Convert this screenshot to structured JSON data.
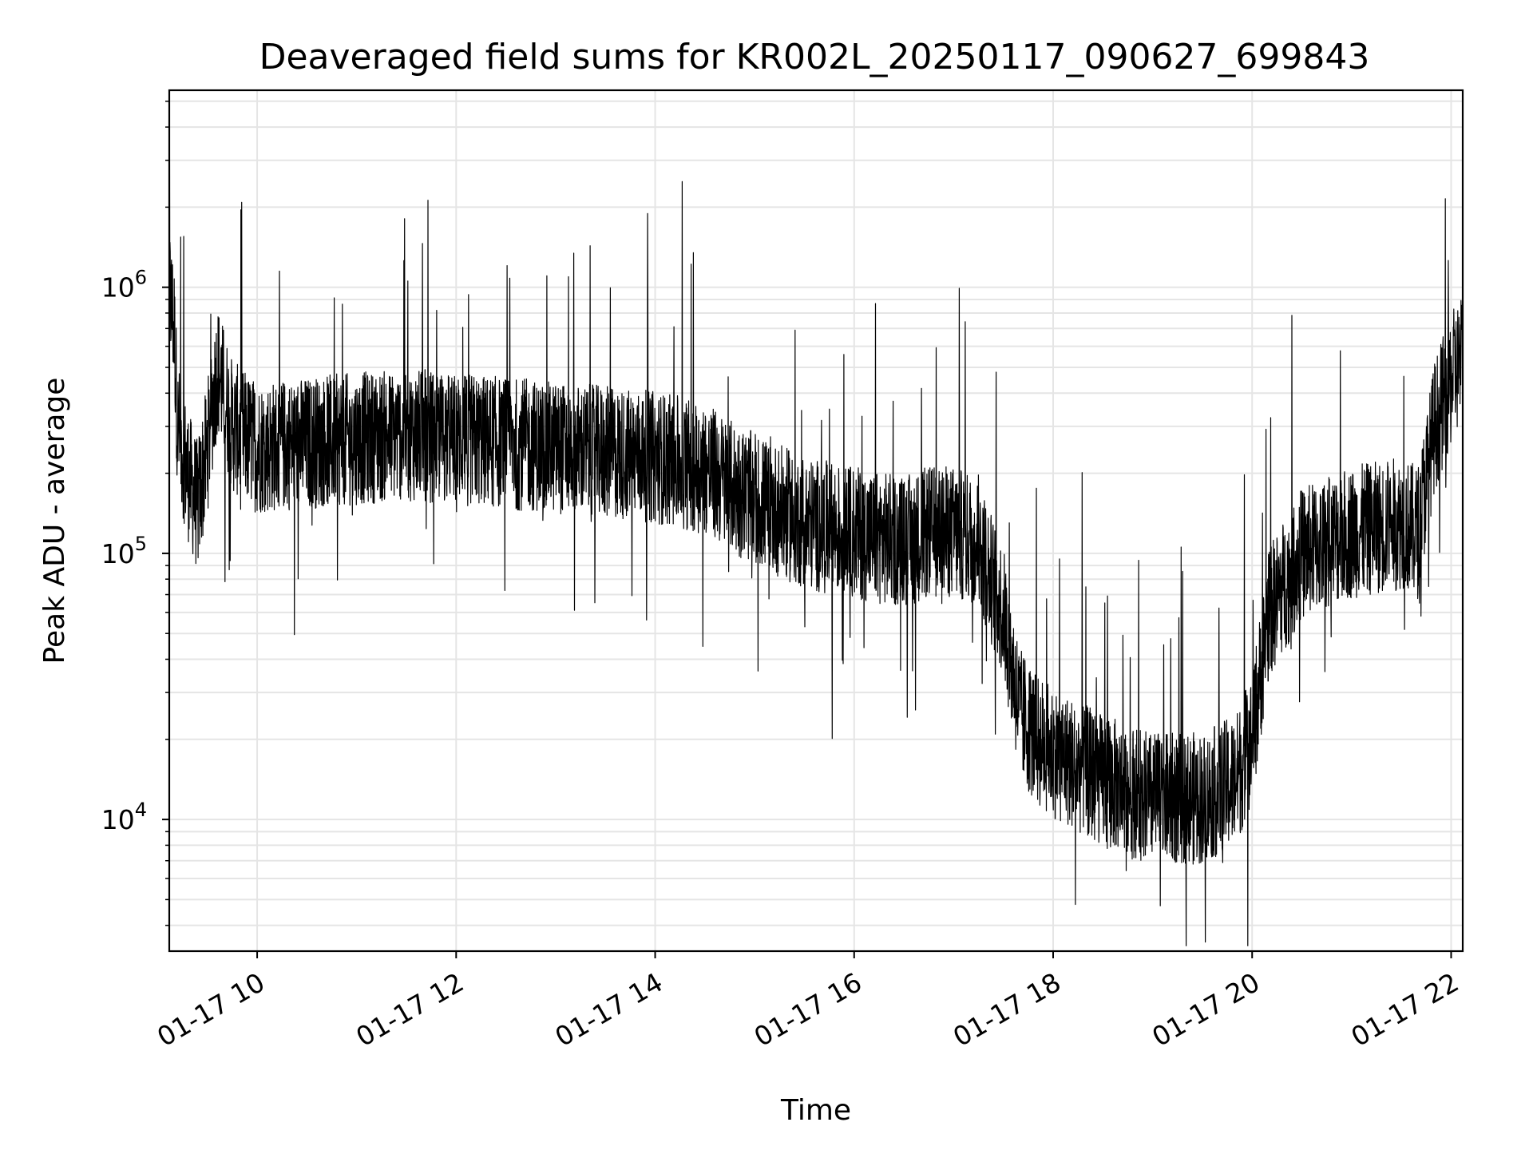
{
  "chart_data": {
    "type": "line",
    "title": "Deaveraged field sums for KR002L_20250117_090627_699843",
    "xlabel": "Time",
    "ylabel": "Peak ADU - average",
    "y_scale": "log",
    "ylim": [
      3200,
      5500000
    ],
    "xlim": [
      "01-17 09:07",
      "01-17 22:07"
    ],
    "x_tick_labels": [
      "01-17 10",
      "01-17 12",
      "01-17 14",
      "01-17 16",
      "01-17 18",
      "01-17 20",
      "01-17 22"
    ],
    "x_ticks": [
      "01-17 10:00",
      "01-17 12:00",
      "01-17 14:00",
      "01-17 16:00",
      "01-17 18:00",
      "01-17 20:00",
      "01-17 22:00"
    ],
    "y_tick_labels": [
      {
        "base": "10",
        "exp": "4",
        "value": 10000
      },
      {
        "base": "10",
        "exp": "5",
        "value": 100000
      },
      {
        "base": "10",
        "exp": "6",
        "value": 1000000
      }
    ],
    "grid": true,
    "line_color": "#000000",
    "grid_color": "#e5e5e5",
    "series": [
      {
        "x": [
          "01-17 09:07",
          "01-17 09:10",
          "01-17 09:12",
          "01-17 09:18",
          "01-17 09:24",
          "01-17 09:30",
          "01-17 09:36",
          "01-17 09:45",
          "01-17 10:00",
          "01-17 10:30",
          "01-17 11:00",
          "01-17 11:30",
          "01-17 12:00",
          "01-17 12:30",
          "01-17 13:00",
          "01-17 13:30",
          "01-17 14:00",
          "01-17 14:30",
          "01-17 14:45",
          "01-17 15:00",
          "01-17 15:30",
          "01-17 16:00",
          "01-17 16:30",
          "01-17 16:45",
          "01-17 17:00",
          "01-17 17:15",
          "01-17 17:30",
          "01-17 17:40",
          "01-17 17:50",
          "01-17 18:00",
          "01-17 18:30",
          "01-17 19:00",
          "01-17 19:30",
          "01-17 19:50",
          "01-17 20:00",
          "01-17 20:10",
          "01-17 20:30",
          "01-17 21:00",
          "01-17 21:30",
          "01-17 21:40",
          "01-17 21:50",
          "01-17 22:00",
          "01-17 22:07"
        ],
        "y": [
          1000000,
          700000,
          300000,
          200000,
          150000,
          250000,
          500000,
          300000,
          250000,
          260000,
          270000,
          280000,
          270000,
          260000,
          250000,
          240000,
          230000,
          210000,
          180000,
          160000,
          130000,
          120000,
          110000,
          120000,
          120000,
          110000,
          60000,
          25000,
          20000,
          18000,
          14000,
          12000,
          12000,
          14000,
          20000,
          60000,
          100000,
          120000,
          130000,
          120000,
          300000,
          450000,
          550000
        ]
      }
    ]
  }
}
